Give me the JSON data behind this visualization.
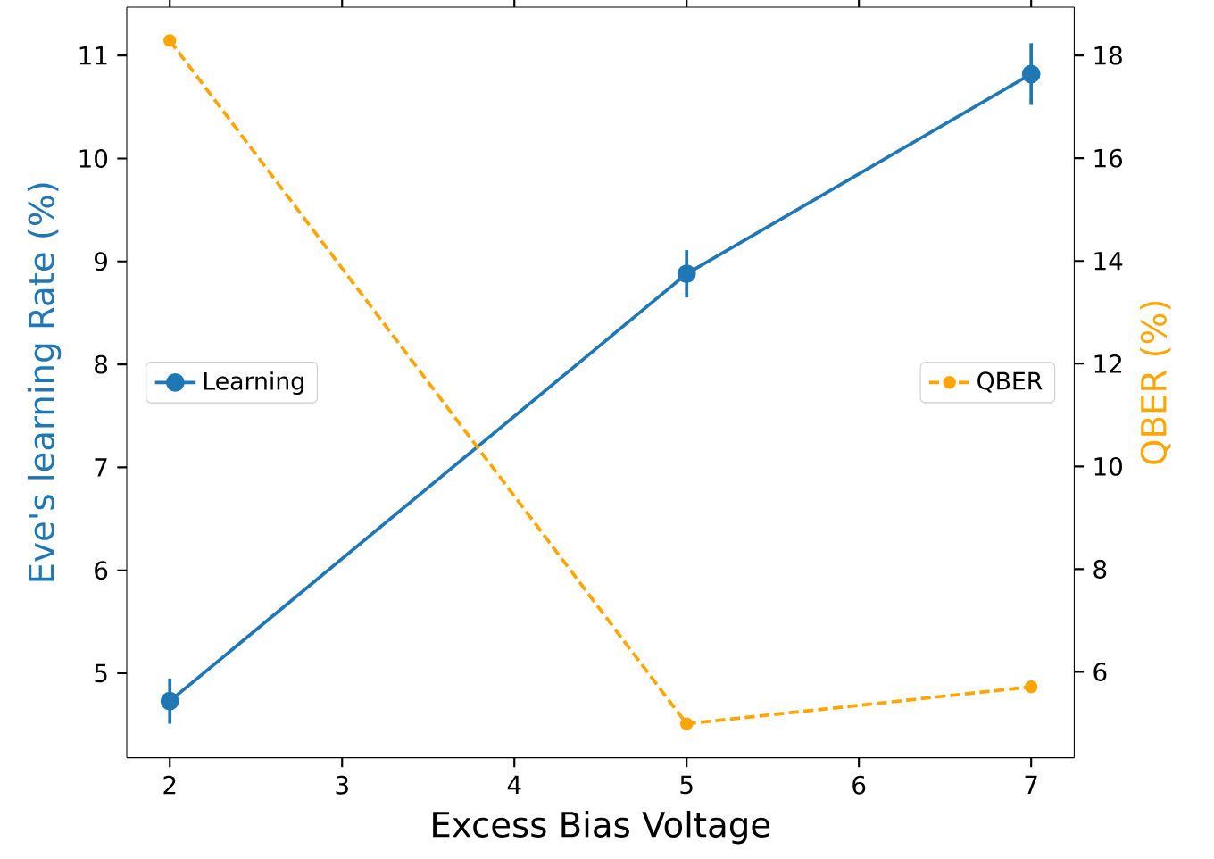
{
  "chart_data": {
    "type": "line",
    "xlabel": "Excess Bias Voltage",
    "ylabel": "Eve's learning Rate (%)",
    "y2label": "QBER (%)",
    "x": [
      2,
      5,
      7
    ],
    "series": [
      {
        "name": "Learning",
        "color": "#1f77b4",
        "values": [
          4.73,
          8.88,
          10.82
        ],
        "errors": [
          0.22,
          0.23,
          0.3
        ],
        "marker": "circle",
        "line_style": "solid"
      },
      {
        "name": "QBER",
        "color": "#ffa500",
        "values": [
          18.29,
          4.99,
          5.71
        ],
        "axis": "y2",
        "marker": "circle",
        "line_style": "dashed"
      }
    ],
    "xlim": [
      1.75,
      7.25
    ],
    "xticks": [
      2,
      3,
      4,
      5,
      6,
      7
    ],
    "ylim": [
      4.18,
      11.47
    ],
    "yticks": [
      5,
      6,
      7,
      8,
      9,
      10,
      11
    ],
    "y2lim": [
      4.33,
      18.94
    ],
    "y2ticks": [
      6,
      8,
      10,
      12,
      14,
      16,
      18
    ],
    "legend": "left"
  }
}
